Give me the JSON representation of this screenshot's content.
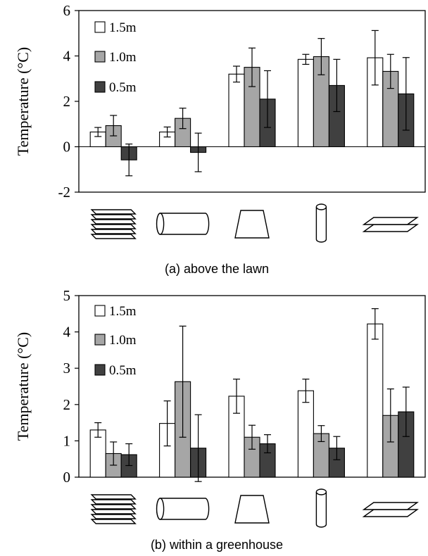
{
  "chart_data": [
    {
      "type": "bar",
      "title": "",
      "caption": "(a) above the lawn",
      "ylabel": "Temperature (°C)",
      "xlabel": "",
      "ylim": [
        -2,
        6
      ],
      "yticks": [
        -2,
        0,
        2,
        4,
        6
      ],
      "categories": [
        "stacked-plates-icon",
        "horizontal-cylinder-icon",
        "trapezoid-icon",
        "vertical-cylinder-icon",
        "double-plate-icon"
      ],
      "legend_position": "top-left",
      "series": [
        {
          "name": "1.5m",
          "color": "#ffffff",
          "values": [
            0.65,
            0.65,
            3.2,
            3.85,
            3.92
          ],
          "errors": [
            0.2,
            0.22,
            0.35,
            0.22,
            1.2
          ]
        },
        {
          "name": "1.0m",
          "color": "#a6a6a6",
          "values": [
            0.93,
            1.25,
            3.5,
            3.97,
            3.32
          ],
          "errors": [
            0.45,
            0.45,
            0.85,
            0.8,
            0.75
          ]
        },
        {
          "name": "0.5m",
          "color": "#404040",
          "values": [
            -0.58,
            -0.25,
            2.1,
            2.7,
            2.33
          ],
          "errors": [
            0.7,
            0.85,
            1.25,
            1.15,
            1.6
          ]
        }
      ]
    },
    {
      "type": "bar",
      "title": "",
      "caption": "(b) within a greenhouse",
      "ylabel": "Temperature (°C)",
      "xlabel": "",
      "ylim": [
        0,
        5
      ],
      "yticks": [
        0,
        1,
        2,
        3,
        4,
        5
      ],
      "categories": [
        "stacked-plates-icon",
        "horizontal-cylinder-icon",
        "trapezoid-icon",
        "vertical-cylinder-icon",
        "double-plate-icon"
      ],
      "legend_position": "top-left",
      "series": [
        {
          "name": "1.5m",
          "color": "#ffffff",
          "values": [
            1.3,
            1.48,
            2.23,
            2.38,
            4.22
          ],
          "errors": [
            0.2,
            0.62,
            0.47,
            0.32,
            0.42
          ]
        },
        {
          "name": "1.0m",
          "color": "#a6a6a6",
          "values": [
            0.65,
            2.63,
            1.1,
            1.2,
            1.7
          ],
          "errors": [
            0.32,
            1.53,
            0.33,
            0.22,
            0.73
          ]
        },
        {
          "name": "0.5m",
          "color": "#404040",
          "values": [
            0.62,
            0.8,
            0.92,
            0.8,
            1.8
          ],
          "errors": [
            0.3,
            0.92,
            0.25,
            0.32,
            0.68
          ]
        }
      ]
    }
  ]
}
